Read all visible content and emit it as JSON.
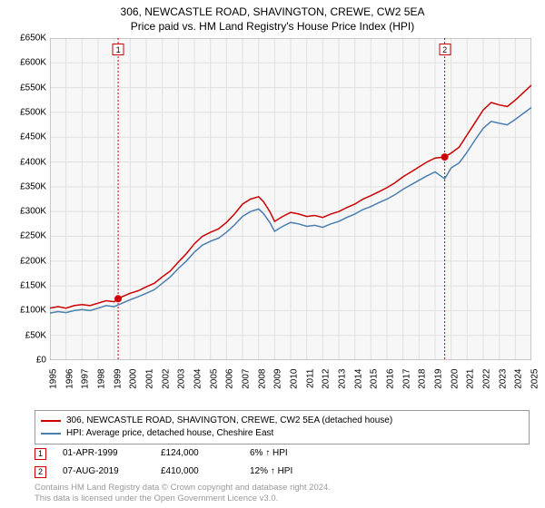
{
  "title": "306, NEWCASTLE ROAD, SHAVINGTON, CREWE, CW2 5EA",
  "subtitle": "Price paid vs. HM Land Registry's House Price Index (HPI)",
  "chart": {
    "type": "line",
    "background_color": "#ffffff",
    "plot_bg_color": "#f7f7f7",
    "grid_color": "#e0e0e0",
    "border_color": "#999999",
    "xlim": [
      1995,
      2025
    ],
    "ylim": [
      0,
      650000
    ],
    "ytick_step": 50000,
    "ytick_labels": [
      "£0",
      "£50K",
      "£100K",
      "£150K",
      "£200K",
      "£250K",
      "£300K",
      "£350K",
      "£400K",
      "£450K",
      "£500K",
      "£550K",
      "£600K",
      "£650K"
    ],
    "xtick_step": 1,
    "xtick_labels": [
      "1995",
      "1996",
      "1997",
      "1998",
      "1999",
      "2000",
      "2001",
      "2002",
      "2003",
      "2004",
      "2005",
      "2006",
      "2007",
      "2008",
      "2009",
      "2010",
      "2011",
      "2012",
      "2013",
      "2014",
      "2015",
      "2016",
      "2017",
      "2018",
      "2019",
      "2020",
      "2021",
      "2022",
      "2023",
      "2024",
      "2025"
    ],
    "label_fontsize": 10,
    "title_fontsize": 12,
    "series": [
      {
        "name": "price_paid",
        "label": "306, NEWCASTLE ROAD, SHAVINGTON, CREWE, CW2 5EA (detached house)",
        "color": "#cc0000",
        "line_width": 1.5,
        "points": [
          [
            1995,
            105000
          ],
          [
            1995.5,
            108000
          ],
          [
            1996,
            105000
          ],
          [
            1996.5,
            110000
          ],
          [
            1997,
            112000
          ],
          [
            1997.5,
            110000
          ],
          [
            1998,
            115000
          ],
          [
            1998.5,
            120000
          ],
          [
            1999,
            118000
          ],
          [
            1999.25,
            124000
          ],
          [
            1999.5,
            128000
          ],
          [
            2000,
            135000
          ],
          [
            2000.5,
            140000
          ],
          [
            2001,
            148000
          ],
          [
            2001.5,
            155000
          ],
          [
            2002,
            168000
          ],
          [
            2002.5,
            180000
          ],
          [
            2003,
            198000
          ],
          [
            2003.5,
            215000
          ],
          [
            2004,
            235000
          ],
          [
            2004.5,
            250000
          ],
          [
            2005,
            258000
          ],
          [
            2005.5,
            265000
          ],
          [
            2006,
            278000
          ],
          [
            2006.5,
            295000
          ],
          [
            2007,
            315000
          ],
          [
            2007.5,
            325000
          ],
          [
            2008,
            330000
          ],
          [
            2008.3,
            320000
          ],
          [
            2008.7,
            300000
          ],
          [
            2009,
            280000
          ],
          [
            2009.5,
            290000
          ],
          [
            2010,
            298000
          ],
          [
            2010.5,
            295000
          ],
          [
            2011,
            290000
          ],
          [
            2011.5,
            292000
          ],
          [
            2012,
            288000
          ],
          [
            2012.5,
            295000
          ],
          [
            2013,
            300000
          ],
          [
            2013.5,
            308000
          ],
          [
            2014,
            315000
          ],
          [
            2014.5,
            325000
          ],
          [
            2015,
            332000
          ],
          [
            2015.5,
            340000
          ],
          [
            2016,
            348000
          ],
          [
            2016.5,
            358000
          ],
          [
            2017,
            370000
          ],
          [
            2017.5,
            380000
          ],
          [
            2018,
            390000
          ],
          [
            2018.5,
            400000
          ],
          [
            2019,
            408000
          ],
          [
            2019.6,
            410000
          ],
          [
            2020,
            418000
          ],
          [
            2020.5,
            430000
          ],
          [
            2021,
            455000
          ],
          [
            2021.5,
            480000
          ],
          [
            2022,
            505000
          ],
          [
            2022.5,
            520000
          ],
          [
            2023,
            515000
          ],
          [
            2023.5,
            512000
          ],
          [
            2024,
            525000
          ],
          [
            2024.5,
            540000
          ],
          [
            2025,
            555000
          ]
        ]
      },
      {
        "name": "hpi",
        "label": "HPI: Average price, detached house, Cheshire East",
        "color": "#4a7fb0",
        "line_width": 1.5,
        "points": [
          [
            1995,
            95000
          ],
          [
            1995.5,
            98000
          ],
          [
            1996,
            96000
          ],
          [
            1996.5,
            100000
          ],
          [
            1997,
            102000
          ],
          [
            1997.5,
            100000
          ],
          [
            1998,
            105000
          ],
          [
            1998.5,
            110000
          ],
          [
            1999,
            108000
          ],
          [
            1999.5,
            115000
          ],
          [
            2000,
            122000
          ],
          [
            2000.5,
            128000
          ],
          [
            2001,
            135000
          ],
          [
            2001.5,
            142000
          ],
          [
            2002,
            155000
          ],
          [
            2002.5,
            168000
          ],
          [
            2003,
            185000
          ],
          [
            2003.5,
            200000
          ],
          [
            2004,
            218000
          ],
          [
            2004.5,
            232000
          ],
          [
            2005,
            240000
          ],
          [
            2005.5,
            246000
          ],
          [
            2006,
            258000
          ],
          [
            2006.5,
            273000
          ],
          [
            2007,
            290000
          ],
          [
            2007.5,
            300000
          ],
          [
            2008,
            305000
          ],
          [
            2008.3,
            296000
          ],
          [
            2008.7,
            278000
          ],
          [
            2009,
            260000
          ],
          [
            2009.5,
            270000
          ],
          [
            2010,
            278000
          ],
          [
            2010.5,
            275000
          ],
          [
            2011,
            270000
          ],
          [
            2011.5,
            272000
          ],
          [
            2012,
            268000
          ],
          [
            2012.5,
            275000
          ],
          [
            2013,
            280000
          ],
          [
            2013.5,
            288000
          ],
          [
            2014,
            295000
          ],
          [
            2014.5,
            304000
          ],
          [
            2015,
            310000
          ],
          [
            2015.5,
            318000
          ],
          [
            2016,
            325000
          ],
          [
            2016.5,
            334000
          ],
          [
            2017,
            345000
          ],
          [
            2017.5,
            354000
          ],
          [
            2018,
            363000
          ],
          [
            2018.5,
            372000
          ],
          [
            2019,
            380000
          ],
          [
            2019.6,
            366000
          ],
          [
            2020,
            388000
          ],
          [
            2020.5,
            398000
          ],
          [
            2021,
            420000
          ],
          [
            2021.5,
            445000
          ],
          [
            2022,
            468000
          ],
          [
            2022.5,
            482000
          ],
          [
            2023,
            478000
          ],
          [
            2023.5,
            475000
          ],
          [
            2024,
            486000
          ],
          [
            2024.5,
            498000
          ],
          [
            2025,
            510000
          ]
        ]
      }
    ],
    "event_lines": [
      {
        "x": 1999.25,
        "color": "#cc0000",
        "marker_label": "1"
      },
      {
        "x": 2019.6,
        "color": "#cc0000",
        "marker_label": "2"
      }
    ],
    "event_points": [
      {
        "x": 1999.25,
        "y": 124000,
        "color": "#cc0000"
      },
      {
        "x": 2019.6,
        "y": 410000,
        "color": "#cc0000"
      }
    ]
  },
  "legend": {
    "items": [
      {
        "label": "306, NEWCASTLE ROAD, SHAVINGTON, CREWE, CW2 5EA (detached house)",
        "color": "#cc0000"
      },
      {
        "label": "HPI: Average price, detached house, Cheshire East",
        "color": "#4a7fb0"
      }
    ]
  },
  "events": [
    {
      "marker": "1",
      "marker_color": "#cc0000",
      "date": "01-APR-1999",
      "price": "£124,000",
      "pct": "6% ↑ HPI"
    },
    {
      "marker": "2",
      "marker_color": "#cc0000",
      "date": "07-AUG-2019",
      "price": "£410,000",
      "pct": "12% ↑ HPI"
    }
  ],
  "footer": {
    "line1": "Contains HM Land Registry data © Crown copyright and database right 2024.",
    "line2": "This data is licensed under the Open Government Licence v3.0."
  }
}
